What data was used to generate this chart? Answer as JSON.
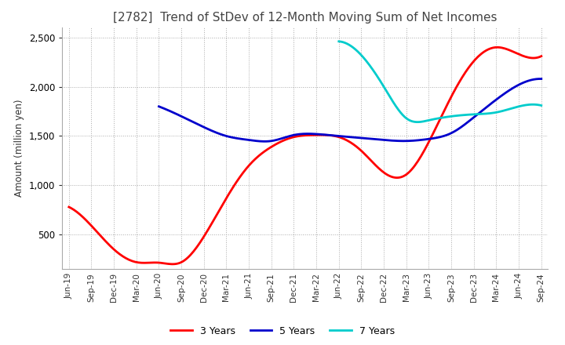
{
  "title": "[2782]  Trend of StDev of 12-Month Moving Sum of Net Incomes",
  "ylabel": "Amount (million yen)",
  "ylim": [
    150,
    2600
  ],
  "yticks": [
    500,
    1000,
    1500,
    2000,
    2500
  ],
  "x_labels": [
    "Jun-19",
    "Sep-19",
    "Dec-19",
    "Mar-20",
    "Jun-20",
    "Sep-20",
    "Dec-20",
    "Mar-21",
    "Jun-21",
    "Sep-21",
    "Dec-21",
    "Mar-22",
    "Jun-22",
    "Sep-22",
    "Dec-22",
    "Mar-23",
    "Jun-23",
    "Sep-23",
    "Dec-23",
    "Mar-24",
    "Jun-24",
    "Sep-24"
  ],
  "series": {
    "3 Years": {
      "color": "#ff0000",
      "data": [
        780,
        590,
        350,
        220,
        215,
        220,
        480,
        870,
        1200,
        1390,
        1490,
        1510,
        1490,
        1350,
        1130,
        1110,
        1440,
        1900,
        2260,
        2400,
        2330,
        2310
      ]
    },
    "5 Years": {
      "color": "#0000cc",
      "data": [
        null,
        null,
        null,
        null,
        1800,
        1700,
        1590,
        1500,
        1460,
        1450,
        1510,
        1520,
        1500,
        1480,
        1460,
        1450,
        1470,
        1530,
        1690,
        1870,
        2020,
        2080
      ]
    },
    "7 Years": {
      "color": "#00cccc",
      "data": [
        null,
        null,
        null,
        null,
        null,
        null,
        null,
        null,
        null,
        null,
        null,
        null,
        2460,
        2320,
        2000,
        1680,
        1660,
        1700,
        1720,
        1740,
        1800,
        1810
      ]
    },
    "10 Years": {
      "color": "#008800",
      "data": [
        null,
        null,
        null,
        null,
        null,
        null,
        null,
        null,
        null,
        null,
        null,
        null,
        null,
        null,
        null,
        null,
        null,
        null,
        null,
        null,
        null,
        null
      ]
    }
  },
  "background_color": "#ffffff",
  "grid_color": "#aaaaaa",
  "grid_linestyle": ":",
  "title_fontsize": 11,
  "legend_ncol": 4
}
